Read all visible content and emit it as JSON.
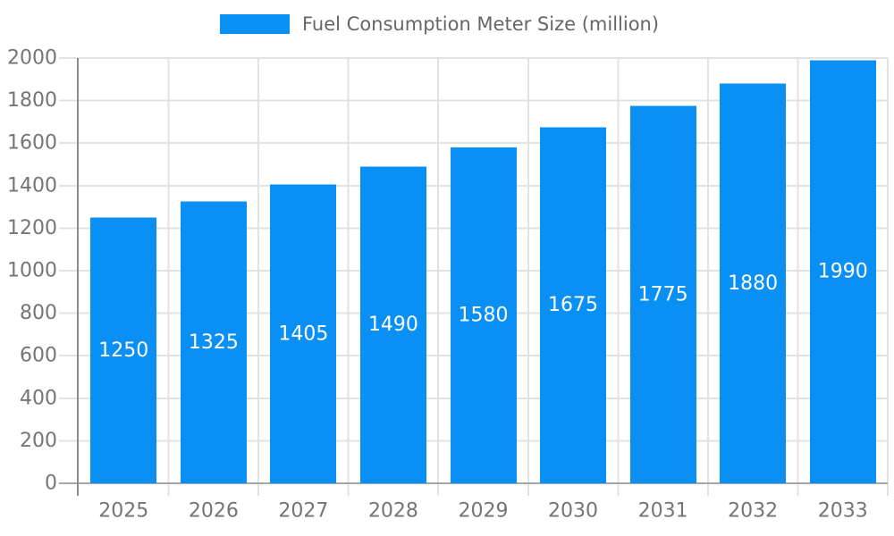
{
  "chart_data": {
    "type": "bar",
    "title": "Fuel Consumption Meter Size (million)",
    "legend_label": "Fuel Consumption Meter Size (million)",
    "legend_position": "top-center",
    "categories": [
      "2025",
      "2026",
      "2027",
      "2028",
      "2029",
      "2030",
      "2031",
      "2032",
      "2033"
    ],
    "series": [
      {
        "name": "Fuel Consumption Meter Size (million)",
        "values": [
          1250,
          1325,
          1405,
          1490,
          1580,
          1675,
          1775,
          1880,
          1990
        ]
      }
    ],
    "value_labels": "inside-center",
    "xlabel": "",
    "ylabel": "",
    "ylim": [
      0,
      2000
    ],
    "ytick_step": 200,
    "yticks": [
      0,
      200,
      400,
      600,
      800,
      1000,
      1200,
      1400,
      1600,
      1800,
      2000
    ],
    "grid": "horizontal and vertical category boundaries",
    "colors": {
      "bar": "#0A90F5",
      "grid_line": "#E2E2E2",
      "y_axis_line": "#8C8C8C",
      "x_axis_line": "#A6A6A6",
      "tick_line": "#D0D0D0",
      "axis_label_text": "#757575",
      "value_label_text": "#FFFFFF",
      "legend_text": "#666666",
      "background": "#FFFFFF"
    }
  }
}
